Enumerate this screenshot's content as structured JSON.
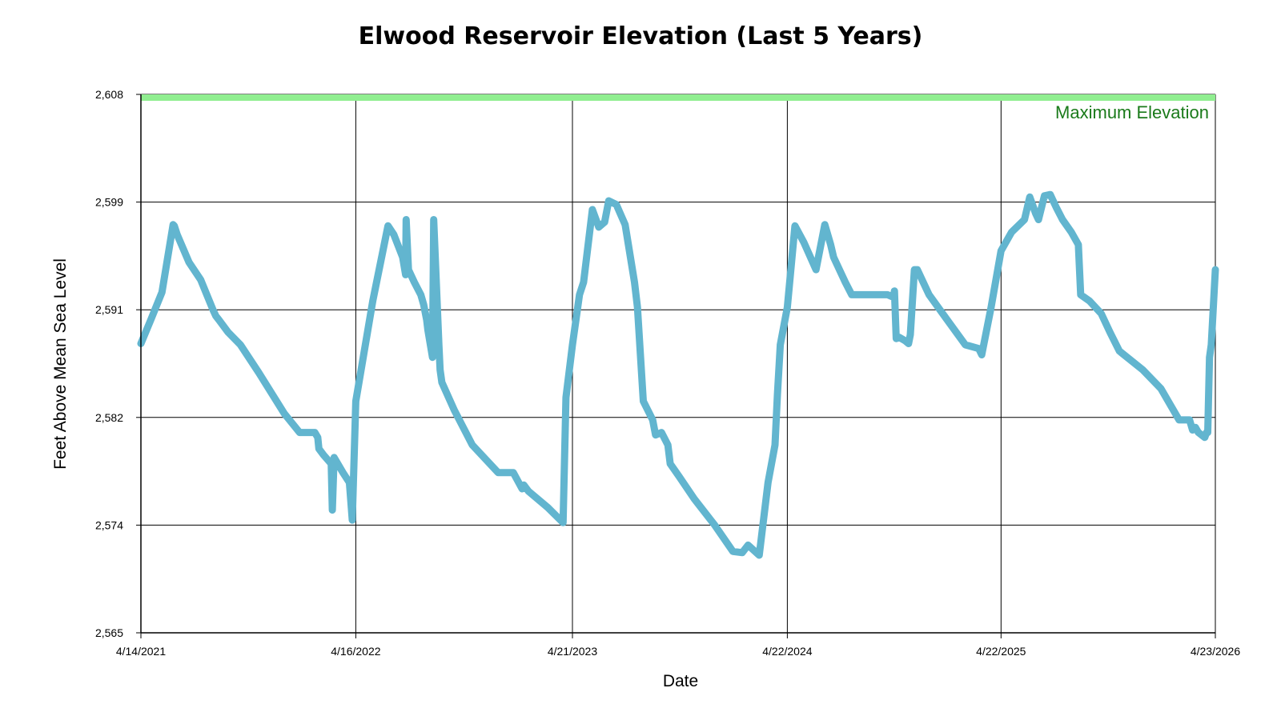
{
  "chart_data": {
    "type": "line",
    "title": "Elwood Reservoir Elevation (Last 5 Years)",
    "xlabel": "Date",
    "ylabel": "Feet Above Mean Sea Level",
    "ylim": [
      2565,
      2608
    ],
    "xlim": [
      "2021-04-14",
      "2026-04-23"
    ],
    "yticks": [
      "2,565",
      "2,574",
      "2,582",
      "2,591",
      "2,599",
      "2,608"
    ],
    "ytick_values": [
      2565,
      2573.6,
      2582.2,
      2590.8,
      2599.4,
      2608
    ],
    "xticks": [
      "4/14/2021",
      "4/16/2022",
      "4/21/2023",
      "4/22/2024",
      "4/22/2025",
      "4/23/2026"
    ],
    "xtick_dates": [
      "2021-04-14",
      "2022-04-16",
      "2023-04-21",
      "2024-04-22",
      "2025-04-22",
      "2026-04-23"
    ],
    "grid": true,
    "line_color": "#62b5cf",
    "reference_band": {
      "label": "Maximum Elevation",
      "value": 2608,
      "color": "#90ee90",
      "label_color": "#1a7a1a"
    },
    "series": [
      {
        "x": [
          "2021-04-14",
          "2021-05-01",
          "2021-05-20",
          "2021-06-08",
          "2021-06-10",
          "2021-06-15",
          "2021-07-05",
          "2021-07-25",
          "2021-08-15",
          "2021-08-20",
          "2021-08-25",
          "2021-09-10",
          "2021-10-01",
          "2021-11-01",
          "2021-12-15",
          "2022-01-10",
          "2022-02-05",
          "2022-02-10",
          "2022-02-12",
          "2022-02-20",
          "2022-03-05",
          "2022-03-07",
          "2022-03-10",
          "2022-03-25",
          "2022-04-05",
          "2022-04-10",
          "2022-04-16",
          "2022-05-15",
          "2022-06-10",
          "2022-06-20",
          "2022-07-05",
          "2022-07-10",
          "2022-07-11",
          "2022-07-15",
          "2022-07-25",
          "2022-08-05",
          "2022-08-10",
          "2022-08-15",
          "2022-08-17",
          "2022-08-20",
          "2022-08-25",
          "2022-08-27",
          "2022-09-05",
          "2022-09-07",
          "2022-09-10",
          "2022-10-01",
          "2022-11-01",
          "2022-12-15",
          "2023-01-10",
          "2023-01-25",
          "2023-01-28",
          "2023-02-05",
          "2023-03-10",
          "2023-04-05",
          "2023-04-10",
          "2023-04-21",
          "2023-05-03",
          "2023-05-10",
          "2023-05-25",
          "2023-06-05",
          "2023-06-15",
          "2023-06-22",
          "2023-07-05",
          "2023-07-20",
          "2023-08-05",
          "2023-08-10",
          "2023-08-20",
          "2023-09-05",
          "2023-09-10",
          "2023-09-20",
          "2023-10-01",
          "2023-10-05",
          "2023-10-20",
          "2023-11-15",
          "2023-12-20",
          "2024-01-20",
          "2024-02-05",
          "2024-02-15",
          "2024-03-05",
          "2024-03-20",
          "2024-04-01",
          "2024-04-05",
          "2024-04-10",
          "2024-04-22",
          "2024-05-05",
          "2024-05-20",
          "2024-06-10",
          "2024-06-25",
          "2024-07-05",
          "2024-07-10",
          "2024-07-15",
          "2024-07-30",
          "2024-08-10",
          "2024-08-25",
          "2024-09-10",
          "2024-10-10",
          "2024-10-20",
          "2024-10-22",
          "2024-10-25",
          "2024-10-30",
          "2024-11-10",
          "2024-11-15",
          "2024-11-18",
          "2024-11-25",
          "2024-11-30",
          "2024-12-10",
          "2024-12-20",
          "2025-01-20",
          "2025-02-20",
          "2025-03-15",
          "2025-03-20",
          "2025-04-05",
          "2025-04-22",
          "2025-05-10",
          "2025-06-01",
          "2025-06-10",
          "2025-06-20",
          "2025-06-25",
          "2025-07-05",
          "2025-07-15",
          "2025-07-20",
          "2025-07-25",
          "2025-08-05",
          "2025-08-20",
          "2025-09-01",
          "2025-09-05",
          "2025-09-20",
          "2025-10-10",
          "2025-10-25",
          "2025-11-10",
          "2025-12-20",
          "2026-01-20",
          "2026-02-20",
          "2026-03-10",
          "2026-03-15",
          "2026-03-20",
          "2026-03-25",
          "2026-04-05",
          "2026-04-08",
          "2026-04-10",
          "2026-04-13",
          "2026-04-16",
          "2026-04-23"
        ],
        "y": [
          2588.1,
          2590.0,
          2592.2,
          2597.6,
          2597.5,
          2596.8,
          2594.6,
          2593.2,
          2590.8,
          2590.3,
          2590.0,
          2589.0,
          2588.0,
          2585.8,
          2582.5,
          2581.0,
          2581.0,
          2580.6,
          2579.7,
          2579.2,
          2578.5,
          2574.8,
          2579.0,
          2577.8,
          2577.0,
          2574.0,
          2583.5,
          2591.5,
          2597.5,
          2596.8,
          2595.0,
          2593.6,
          2598.0,
          2594.0,
          2593.0,
          2592.0,
          2591.2,
          2590.0,
          2589.2,
          2588.4,
          2587.0,
          2598.0,
          2588.0,
          2586.0,
          2585.0,
          2582.8,
          2580.0,
          2577.8,
          2577.8,
          2576.5,
          2576.8,
          2576.3,
          2575.0,
          2573.8,
          2583.8,
          2588.0,
          2592.0,
          2593.0,
          2598.8,
          2597.4,
          2597.8,
          2599.5,
          2599.2,
          2597.6,
          2593.0,
          2591.0,
          2583.5,
          2582.0,
          2580.8,
          2581.0,
          2580.0,
          2578.5,
          2577.5,
          2575.7,
          2573.6,
          2571.5,
          2571.4,
          2572.0,
          2571.2,
          2577.0,
          2580.0,
          2584.0,
          2588.0,
          2591.0,
          2597.5,
          2596.2,
          2594.0,
          2597.6,
          2596.0,
          2595.0,
          2594.5,
          2593.0,
          2592.0,
          2592.0,
          2592.0,
          2592.0,
          2591.8,
          2592.3,
          2588.5,
          2588.6,
          2588.3,
          2588.1,
          2588.8,
          2594.0,
          2594.0,
          2593.0,
          2592.0,
          2590.0,
          2588.0,
          2587.7,
          2587.2,
          2591.0,
          2595.5,
          2597.0,
          2598.0,
          2599.8,
          2598.5,
          2598.0,
          2599.9,
          2600.0,
          2599.5,
          2599.0,
          2598.0,
          2597.0,
          2596.0,
          2592.0,
          2591.5,
          2590.5,
          2589.0,
          2587.5,
          2586.0,
          2584.5,
          2582.0,
          2582.0,
          2581.2,
          2581.4,
          2581.0,
          2580.6,
          2581.0,
          2581.0,
          2587.0,
          2588.0,
          2594.0
        ]
      }
    ]
  }
}
